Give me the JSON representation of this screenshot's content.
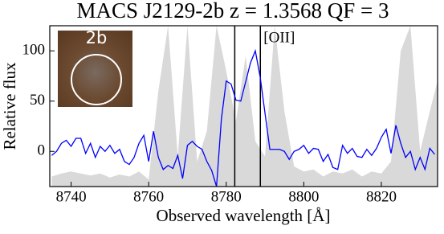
{
  "chart_data": {
    "type": "line",
    "title": "MACS J2129-2b z = 1.3568 QF = 3",
    "xlabel": "Observed wavelength [Å]",
    "ylabel": "Relative flux",
    "xlim": [
      8734.5,
      8834.5
    ],
    "ylim": [
      -35,
      125
    ],
    "xticks": [
      8740,
      8760,
      8780,
      8800,
      8820
    ],
    "yticks": [
      0,
      50,
      100
    ],
    "vlines": [
      8782.2,
      8788.8
    ],
    "vline_color": "#000000",
    "annotation": "[OII]",
    "inset_label": "2b",
    "sky": {
      "color": "#d9d9d9",
      "x": [
        8735,
        8737.5,
        8740,
        8742.5,
        8745,
        8747.5,
        8750,
        8752.5,
        8755,
        8757.5,
        8760,
        8762.5,
        8765,
        8767.5,
        8770,
        8772.5,
        8775,
        8777.5,
        8780,
        8782.5,
        8785,
        8787.5,
        8790,
        8792.5,
        8795,
        8797.5,
        8800,
        8802.5,
        8805,
        8807.5,
        8810,
        8812.5,
        8815,
        8817.5,
        8820,
        8822.5,
        8825,
        8827.5,
        8830,
        8832.5,
        8834.5
      ],
      "values": [
        -25,
        -22,
        -20,
        -22,
        -24,
        -22,
        -26,
        -23,
        -25,
        -20,
        -28,
        60,
        125,
        -5,
        125,
        -10,
        20,
        125,
        80,
        30,
        95,
        10,
        -5,
        125,
        40,
        -15,
        -20,
        -18,
        -25,
        -20,
        -22,
        -18,
        -25,
        -20,
        -22,
        -10,
        100,
        125,
        0,
        40,
        70
      ]
    },
    "series": [
      {
        "color": "#0000ff",
        "x": [
          8735,
          8736.25,
          8737.5,
          8738.75,
          8740,
          8741.25,
          8742.5,
          8743.75,
          8745,
          8746.25,
          8747.5,
          8748.75,
          8750,
          8751.25,
          8752.5,
          8753.75,
          8755,
          8756.25,
          8757.5,
          8758.75,
          8760,
          8761.25,
          8762.5,
          8763.75,
          8765,
          8766.25,
          8767.5,
          8768.75,
          8770,
          8771.25,
          8772.5,
          8773.75,
          8775,
          8776.25,
          8777.5,
          8778.75,
          8780,
          8781.25,
          8782.5,
          8783.75,
          8785,
          8786.25,
          8787.5,
          8788.75,
          8790,
          8791.25,
          8792.5,
          8793.75,
          8795,
          8796.25,
          8797.5,
          8798.75,
          8800,
          8801.25,
          8802.5,
          8803.75,
          8805,
          8806.25,
          8807.5,
          8808.75,
          8810,
          8811.25,
          8812.5,
          8813.75,
          8815,
          8816.25,
          8817.5,
          8818.75,
          8820,
          8821.25,
          8822.5,
          8823.75,
          8825,
          8826.25,
          8827.5,
          8828.75,
          8830,
          8831.25,
          8832.5,
          8833.75
        ],
        "values": [
          -4,
          0,
          8,
          11,
          5,
          13,
          13,
          -2,
          8,
          -6,
          5,
          0,
          6,
          -2,
          2,
          -10,
          -13,
          -6,
          8,
          16,
          -10,
          20,
          -6,
          -18,
          -14,
          -17,
          -4,
          -27,
          6,
          10,
          5,
          2,
          -10,
          -19,
          -35,
          32,
          70,
          67,
          51,
          50,
          69,
          88,
          100,
          74,
          38,
          2,
          2,
          2,
          0,
          -8,
          0,
          2,
          6,
          -2,
          3,
          2,
          -10,
          -3,
          -16,
          -18,
          6,
          -2,
          3,
          -5,
          -6,
          2,
          -4,
          3,
          14,
          22,
          -2,
          26,
          8,
          -6,
          0,
          -18,
          -6,
          -18,
          3,
          -3
        ]
      }
    ]
  }
}
